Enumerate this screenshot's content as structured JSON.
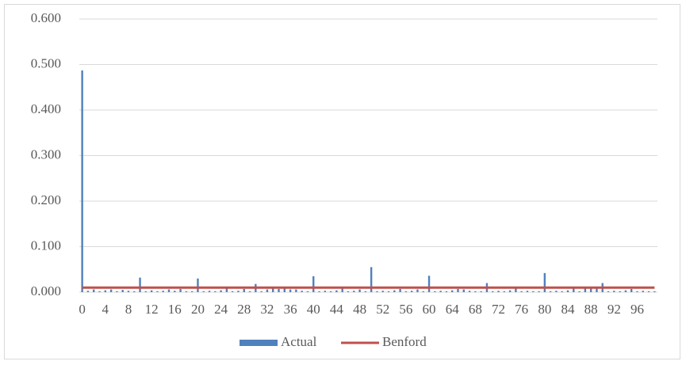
{
  "chart_data": {
    "type": "bar",
    "categories": [
      0,
      null,
      null,
      null,
      4,
      null,
      null,
      null,
      8,
      null,
      null,
      null,
      12,
      null,
      null,
      null,
      16,
      null,
      null,
      null,
      20,
      null,
      null,
      null,
      24,
      null,
      null,
      null,
      28,
      null,
      null,
      null,
      32,
      null,
      null,
      null,
      36,
      null,
      null,
      null,
      40,
      null,
      null,
      null,
      44,
      null,
      null,
      null,
      48,
      null,
      null,
      null,
      52,
      null,
      null,
      null,
      56,
      null,
      null,
      null,
      60,
      null,
      null,
      null,
      64,
      null,
      null,
      null,
      68,
      null,
      null,
      null,
      72,
      null,
      null,
      null,
      76,
      null,
      null,
      null,
      80,
      null,
      null,
      null,
      84,
      null,
      null,
      null,
      88,
      null,
      null,
      null,
      92,
      null,
      null,
      null,
      96,
      null,
      null,
      null
    ],
    "series": [
      {
        "name": "Actual",
        "type": "bar",
        "color": "#4f81bd",
        "values": [
          0.487,
          0.003,
          0.006,
          0.002,
          0.004,
          0.006,
          0.002,
          0.005,
          0.003,
          0.002,
          0.032,
          0.002,
          0.004,
          0.002,
          0.003,
          0.006,
          0.003,
          0.007,
          0.002,
          0.002,
          0.03,
          0.002,
          0.003,
          0.002,
          0.004,
          0.008,
          0.002,
          0.003,
          0.007,
          0.002,
          0.018,
          0.002,
          0.006,
          0.008,
          0.007,
          0.008,
          0.006,
          0.006,
          0.003,
          0.002,
          0.035,
          0.002,
          0.003,
          0.002,
          0.004,
          0.008,
          0.002,
          0.003,
          0.006,
          0.002,
          0.055,
          0.002,
          0.003,
          0.002,
          0.004,
          0.007,
          0.002,
          0.003,
          0.006,
          0.002,
          0.036,
          0.002,
          0.003,
          0.002,
          0.004,
          0.007,
          0.006,
          0.003,
          0.002,
          0.002,
          0.02,
          0.002,
          0.003,
          0.002,
          0.004,
          0.008,
          0.002,
          0.003,
          0.002,
          0.002,
          0.042,
          0.002,
          0.003,
          0.002,
          0.004,
          0.008,
          0.002,
          0.008,
          0.009,
          0.008,
          0.02,
          0.002,
          0.003,
          0.002,
          0.004,
          0.007,
          0.002,
          0.003,
          0.002,
          0.002
        ]
      },
      {
        "name": "Benford",
        "type": "line",
        "color": "#c0504d",
        "values": [
          0.01,
          0.01,
          0.01,
          0.01,
          0.01,
          0.01,
          0.01,
          0.01,
          0.01,
          0.01,
          0.01,
          0.01,
          0.01,
          0.01,
          0.01,
          0.01,
          0.01,
          0.01,
          0.01,
          0.01,
          0.01,
          0.01,
          0.01,
          0.01,
          0.01,
          0.01,
          0.01,
          0.01,
          0.01,
          0.01,
          0.01,
          0.01,
          0.01,
          0.01,
          0.01,
          0.01,
          0.01,
          0.01,
          0.01,
          0.01,
          0.01,
          0.01,
          0.01,
          0.01,
          0.01,
          0.01,
          0.01,
          0.01,
          0.01,
          0.01,
          0.01,
          0.01,
          0.01,
          0.01,
          0.01,
          0.01,
          0.01,
          0.01,
          0.01,
          0.01,
          0.01,
          0.01,
          0.01,
          0.01,
          0.01,
          0.01,
          0.01,
          0.01,
          0.01,
          0.01,
          0.01,
          0.01,
          0.01,
          0.01,
          0.01,
          0.01,
          0.01,
          0.01,
          0.01,
          0.01,
          0.01,
          0.01,
          0.01,
          0.01,
          0.01,
          0.01,
          0.01,
          0.01,
          0.01,
          0.01,
          0.01,
          0.01,
          0.01,
          0.01,
          0.01,
          0.01,
          0.01,
          0.01,
          0.01,
          0.01
        ]
      }
    ],
    "ylim": [
      0,
      0.6
    ],
    "yticks": [
      {
        "value": 0,
        "label": "0.000"
      },
      {
        "value": 0.1,
        "label": "0.100"
      },
      {
        "value": 0.2,
        "label": "0.200"
      },
      {
        "value": 0.3,
        "label": "0.300"
      },
      {
        "value": 0.4,
        "label": "0.400"
      },
      {
        "value": 0.5,
        "label": "0.500"
      },
      {
        "value": 0.6,
        "label": "0.600"
      }
    ],
    "grid": true,
    "legend": "bottom"
  }
}
